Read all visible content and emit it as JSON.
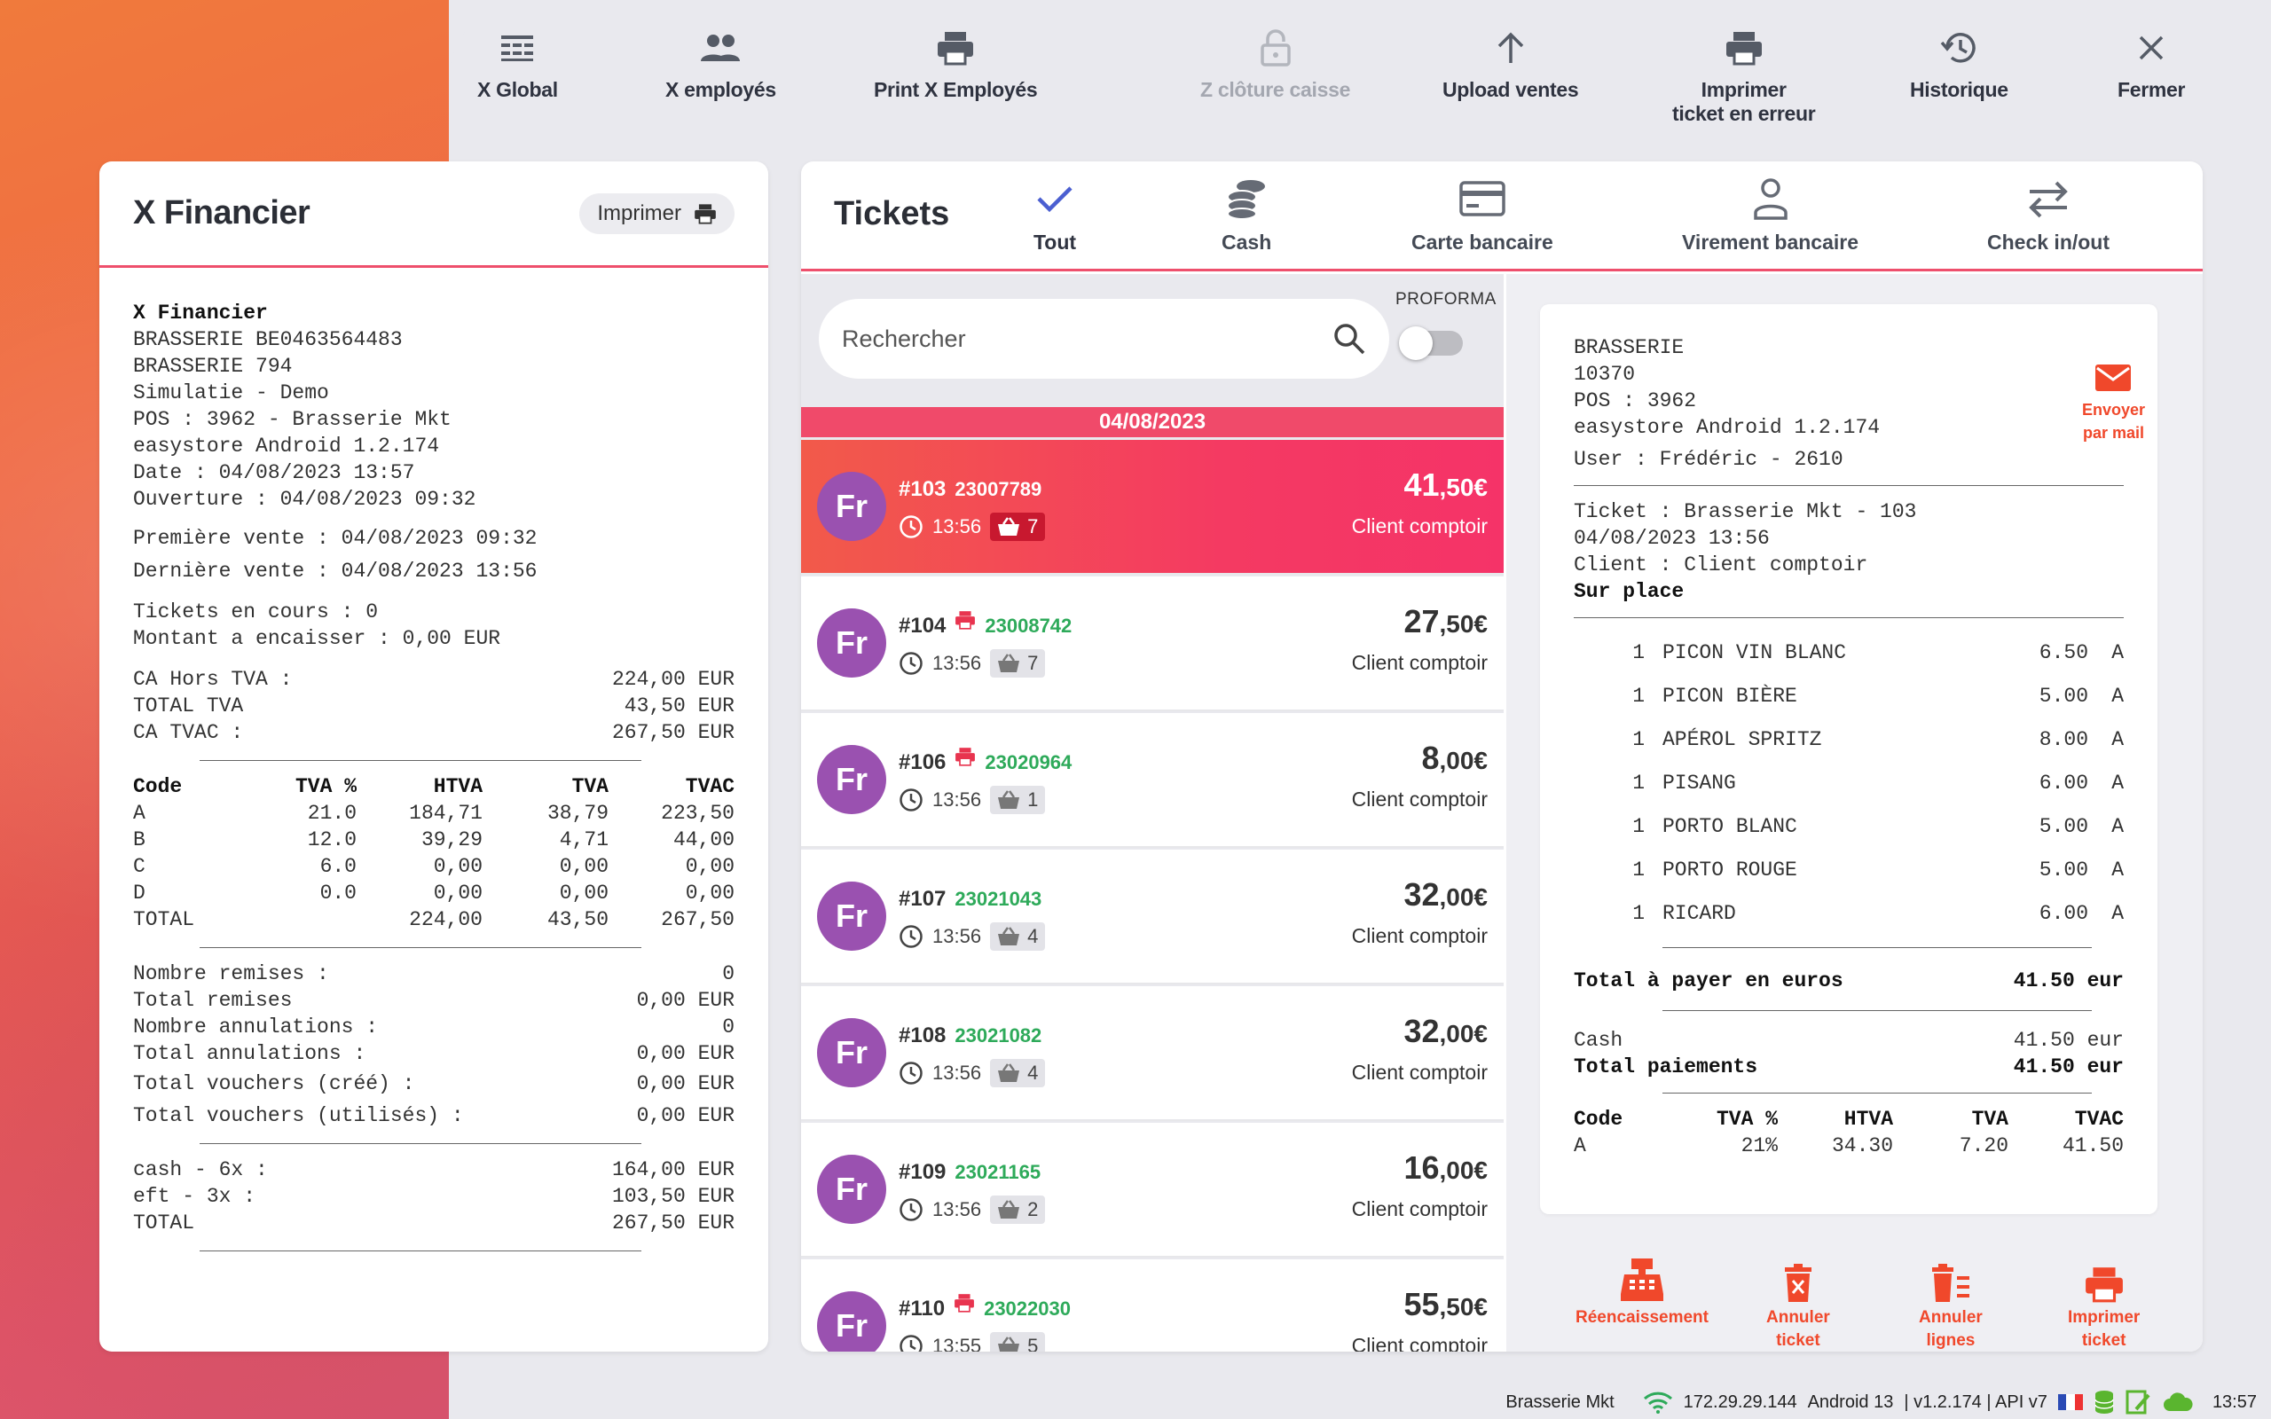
{
  "toolbar": {
    "x_global": "X Global",
    "x_employes": "X employés",
    "print_x_employes": "Print X Employés",
    "z_cloture": "Z clôture caisse",
    "upload_ventes": "Upload ventes",
    "imprimer_ticket_erreur": "Imprimer\nticket en erreur",
    "historique": "Historique",
    "fermer": "Fermer"
  },
  "x_financier": {
    "title": "X Financier",
    "print_label": "Imprimer",
    "header_lines": [
      "X Financier",
      "BRASSERIE BE0463564483",
      "BRASSERIE 794",
      "Simulatie - Demo",
      "POS : 3962 - Brasserie Mkt",
      "easystore Android 1.2.174",
      "Date : 04/08/2023 13:57",
      "Ouverture : 04/08/2023 09:32"
    ],
    "premiere_vente": "Première vente : 04/08/2023 09:32",
    "derniere_vente": "Dernière vente : 04/08/2023 13:56",
    "tickets_en_cours": "Tickets en cours : 0",
    "montant_encaisser": "Montant a encaisser : 0,00 EUR",
    "totals": [
      {
        "label": "CA Hors TVA :",
        "value": "224,00 EUR"
      },
      {
        "label": "TOTAL TVA",
        "value": "43,50 EUR"
      },
      {
        "label": "CA TVAC :",
        "value": "267,50 EUR"
      }
    ],
    "vat_header": [
      "Code",
      "TVA %",
      "HTVA",
      "TVA",
      "TVAC"
    ],
    "vat_rows": [
      [
        "A",
        "21.0",
        "184,71",
        "38,79",
        "223,50"
      ],
      [
        "B",
        "12.0",
        "39,29",
        "4,71",
        "44,00"
      ],
      [
        "C",
        "6.0",
        "0,00",
        "0,00",
        "0,00"
      ],
      [
        "D",
        "0.0",
        "0,00",
        "0,00",
        "0,00"
      ],
      [
        "TOTAL",
        "",
        "224,00",
        "43,50",
        "267,50"
      ]
    ],
    "counters": [
      {
        "label": "Nombre remises :",
        "value": "0"
      },
      {
        "label": "Total remises",
        "value": "0,00 EUR"
      },
      {
        "label": "Nombre annulations :",
        "value": "0"
      },
      {
        "label": "Total annulations :",
        "value": "0,00 EUR"
      },
      {
        "label": "Total vouchers (créé) :",
        "value": "0,00 EUR"
      },
      {
        "label": "Total vouchers (utilisés) :",
        "value": "0,00 EUR"
      }
    ],
    "payments": [
      {
        "label": "cash - 6x :",
        "value": "164,00 EUR"
      },
      {
        "label": "eft - 3x :",
        "value": "103,50 EUR"
      },
      {
        "label": "TOTAL",
        "value": "267,50 EUR"
      }
    ]
  },
  "tickets": {
    "title": "Tickets",
    "tabs": [
      "Tout",
      "Cash",
      "Carte bancaire",
      "Virement bancaire",
      "Check in/out"
    ],
    "search_placeholder": "Rechercher",
    "proforma_label": "PROFORMA",
    "date": "04/08/2023",
    "list": [
      {
        "avatar": "Fr",
        "num": "#103",
        "code": "23007789",
        "time": "13:56",
        "items": "7",
        "amount": "41",
        "cents": ",50€",
        "client": "Client comptoir",
        "printed": false
      },
      {
        "avatar": "Fr",
        "num": "#104",
        "code": "23008742",
        "time": "13:56",
        "items": "7",
        "amount": "27",
        "cents": ",50€",
        "client": "Client comptoir",
        "printed": true
      },
      {
        "avatar": "Fr",
        "num": "#106",
        "code": "23020964",
        "time": "13:56",
        "items": "1",
        "amount": "8",
        "cents": ",00€",
        "client": "Client comptoir",
        "printed": true
      },
      {
        "avatar": "Fr",
        "num": "#107",
        "code": "23021043",
        "time": "13:56",
        "items": "4",
        "amount": "32",
        "cents": ",00€",
        "client": "Client comptoir",
        "printed": false
      },
      {
        "avatar": "Fr",
        "num": "#108",
        "code": "23021082",
        "time": "13:56",
        "items": "4",
        "amount": "32",
        "cents": ",00€",
        "client": "Client comptoir",
        "printed": false
      },
      {
        "avatar": "Fr",
        "num": "#109",
        "code": "23021165",
        "time": "13:56",
        "items": "2",
        "amount": "16",
        "cents": ",00€",
        "client": "Client comptoir",
        "printed": false
      },
      {
        "avatar": "Fr",
        "num": "#110",
        "code": "23022030",
        "time": "13:55",
        "items": "5",
        "amount": "55",
        "cents": ",50€",
        "client": "Client comptoir",
        "printed": true
      }
    ]
  },
  "receipt": {
    "header_lines": [
      "BRASSERIE",
      "10370",
      "POS : 3962",
      "easystore Android 1.2.174",
      "User : Frédéric - 2610"
    ],
    "ticket_lines": [
      "Ticket : Brasserie Mkt - 103",
      "04/08/2023 13:56",
      "Client : Client comptoir"
    ],
    "sur_place": "Sur place",
    "items": [
      {
        "qty": "1",
        "name": "PICON VIN BLANC",
        "price": "6.50",
        "vat": "A"
      },
      {
        "qty": "1",
        "name": "PICON BIÈRE",
        "price": "5.00",
        "vat": "A"
      },
      {
        "qty": "1",
        "name": "APÉROL SPRITZ",
        "price": "8.00",
        "vat": "A"
      },
      {
        "qty": "1",
        "name": "PISANG",
        "price": "6.00",
        "vat": "A"
      },
      {
        "qty": "1",
        "name": "PORTO BLANC",
        "price": "5.00",
        "vat": "A"
      },
      {
        "qty": "1",
        "name": "PORTO ROUGE",
        "price": "5.00",
        "vat": "A"
      },
      {
        "qty": "1",
        "name": "RICARD",
        "price": "6.00",
        "vat": "A"
      }
    ],
    "total_label": "Total à payer en euros",
    "total_value": "41.50 eur",
    "cash_label": "Cash",
    "cash_value": "41.50 eur",
    "total_paiements_label": "Total paiements",
    "total_paiements_value": "41.50 eur",
    "vat_header": [
      "Code",
      "TVA %",
      "HTVA",
      "TVA",
      "TVAC"
    ],
    "vat_rows": [
      [
        "A",
        "21%",
        "34.30",
        "7.20",
        "41.50"
      ]
    ],
    "mail_label": "Envoyer\npar mail"
  },
  "actions": {
    "reencaissement": "Réencaissement",
    "annuler_ticket": "Annuler\nticket",
    "annuler_lignes": "Annuler\nlignes",
    "imprimer_ticket": "Imprimer\nticket"
  },
  "status": {
    "shop": "Brasserie Mkt",
    "ip": "172.29.29.144",
    "android": "Android 13",
    "version": "| v1.2.174 | API v7",
    "time": "13:57"
  },
  "colors": {
    "accent": "#ee4f6c",
    "action_red": "#f0482b",
    "avatar_purple": "#9a51b0",
    "barcode_green": "#2eaa5a"
  }
}
